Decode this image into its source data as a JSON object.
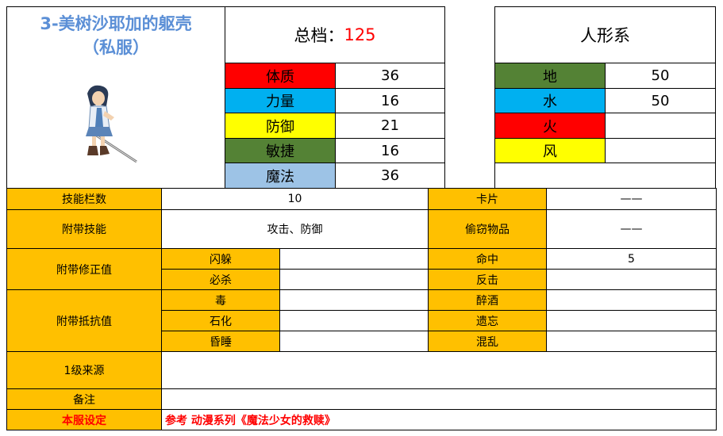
{
  "title_line1": "3-美树沙耶加的躯壳",
  "title_line2": "（私服）",
  "total": {
    "label": "总档：",
    "value": "125"
  },
  "series": "人形系",
  "stats": [
    {
      "label": "体质",
      "value": "36",
      "color": "#ff0000"
    },
    {
      "label": "力量",
      "value": "16",
      "color": "#00b0f0"
    },
    {
      "label": "防御",
      "value": "21",
      "color": "#ffff00"
    },
    {
      "label": "敏捷",
      "value": "16",
      "color": "#548235"
    },
    {
      "label": "魔法",
      "value": "36",
      "color": "#9dc3e6"
    }
  ],
  "elements": [
    {
      "label": "地",
      "value": "50",
      "color": "#548235"
    },
    {
      "label": "水",
      "value": "50",
      "color": "#00b0f0"
    },
    {
      "label": "火",
      "value": "",
      "color": "#ff0000"
    },
    {
      "label": "风",
      "value": "",
      "color": "#ffff00"
    }
  ],
  "table": {
    "skill_slots_label": "技能栏数",
    "skill_slots_value": "10",
    "card_label": "卡片",
    "card_value": "——",
    "skills_label": "附带技能",
    "skills_value": "攻击、防御",
    "steal_label": "偷窃物品",
    "steal_value": "——",
    "mod_label": "附带修正值",
    "mod_rows": [
      {
        "label": "闪躲",
        "value": "",
        "label2": "命中",
        "value2": "5"
      },
      {
        "label": "必杀",
        "value": "",
        "label2": "反击",
        "value2": ""
      }
    ],
    "resist_label": "附带抵抗值",
    "resist_rows": [
      {
        "label": "毒",
        "value": "",
        "label2": "醉酒",
        "value2": ""
      },
      {
        "label": "石化",
        "value": "",
        "label2": "遗忘",
        "value2": ""
      },
      {
        "label": "昏睡",
        "value": "",
        "label2": "混乱",
        "value2": ""
      }
    ],
    "source_label": "1级来源",
    "source_value": "",
    "note_label": "备注",
    "note_value": "",
    "server_label": "本服设定",
    "server_value": "参考 动漫系列《魔法少女的救赎》"
  },
  "colors": {
    "title": "#5b8fd6",
    "header_orange": "#ffc000",
    "accent_red": "#ff0000"
  }
}
